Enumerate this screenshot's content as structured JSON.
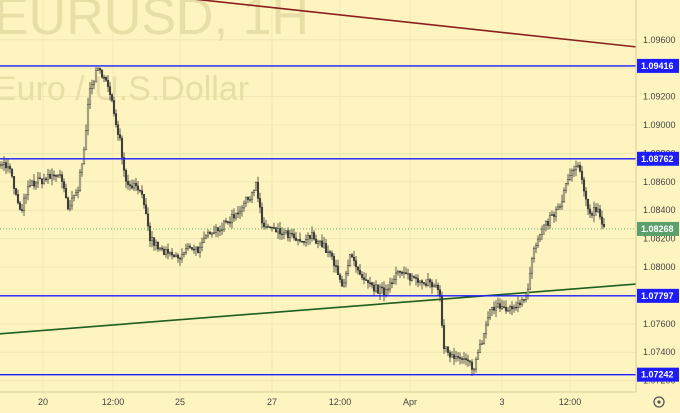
{
  "watermark": {
    "symbol": "EURUSD, 1H",
    "description": "Euro / U.S.Dollar"
  },
  "colors": {
    "background": "#fdf4bf",
    "grid": "#f1e7b3",
    "candle": "#3a3a3a",
    "level": "#1c1cff",
    "support_trendline": "#1e5e1e",
    "resistance_trendline": "#8a1f1f",
    "last_price": "#5aa06b",
    "axis_text": "#444444"
  },
  "settings_icon": "gear-icon",
  "chart_data": {
    "type": "candlestick",
    "title": "",
    "xlabel": "",
    "ylabel": "",
    "ylim": [
      1.0712,
      1.0988
    ],
    "grid": true,
    "y_ticks": [
      "1.07200",
      "1.07400",
      "1.07600",
      "1.07800",
      "1.08000",
      "1.08200",
      "1.08400",
      "1.08600",
      "1.08800",
      "1.09000",
      "1.09200",
      "1.09400",
      "1.09600"
    ],
    "x_ticks": [
      {
        "label": "20",
        "bar": 43
      },
      {
        "label": "12:00",
        "bar": 113
      },
      {
        "label": "25",
        "bar": 180
      },
      {
        "label": "27",
        "bar": 272
      },
      {
        "label": "12:00",
        "bar": 340
      },
      {
        "label": "Apr",
        "bar": 410
      },
      {
        "label": "3",
        "bar": 502
      },
      {
        "label": "12:00",
        "bar": 570
      }
    ],
    "bar_count": 636,
    "waypoints": [
      [
        0,
        1.0875
      ],
      [
        10,
        1.0868
      ],
      [
        20,
        1.0838
      ],
      [
        30,
        1.0858
      ],
      [
        45,
        1.0862
      ],
      [
        60,
        1.0866
      ],
      [
        68,
        1.084
      ],
      [
        78,
        1.0855
      ],
      [
        84,
        1.0885
      ],
      [
        90,
        1.0925
      ],
      [
        97,
        1.0938
      ],
      [
        104,
        1.0936
      ],
      [
        112,
        1.0915
      ],
      [
        120,
        1.089
      ],
      [
        126,
        1.086
      ],
      [
        140,
        1.0856
      ],
      [
        150,
        1.082
      ],
      [
        160,
        1.0812
      ],
      [
        170,
        1.0808
      ],
      [
        180,
        1.0806
      ],
      [
        190,
        1.0815
      ],
      [
        200,
        1.0812
      ],
      [
        210,
        1.0826
      ],
      [
        222,
        1.0828
      ],
      [
        236,
        1.0838
      ],
      [
        248,
        1.0848
      ],
      [
        256,
        1.0858
      ],
      [
        262,
        1.083
      ],
      [
        276,
        1.0825
      ],
      [
        290,
        1.0822
      ],
      [
        300,
        1.0816
      ],
      [
        312,
        1.0822
      ],
      [
        322,
        1.0816
      ],
      [
        332,
        1.0806
      ],
      [
        342,
        1.0786
      ],
      [
        350,
        1.0808
      ],
      [
        362,
        1.079
      ],
      [
        372,
        1.0786
      ],
      [
        384,
        1.0782
      ],
      [
        396,
        1.0796
      ],
      [
        406,
        1.0794
      ],
      [
        416,
        1.0792
      ],
      [
        426,
        1.079
      ],
      [
        440,
        1.0782
      ],
      [
        443,
        1.0745
      ],
      [
        452,
        1.0736
      ],
      [
        462,
        1.0734
      ],
      [
        474,
        1.073
      ],
      [
        482,
        1.0748
      ],
      [
        490,
        1.077
      ],
      [
        500,
        1.0772
      ],
      [
        510,
        1.077
      ],
      [
        520,
        1.0776
      ],
      [
        527,
        1.0782
      ],
      [
        533,
        1.081
      ],
      [
        540,
        1.0822
      ],
      [
        550,
        1.0834
      ],
      [
        560,
        1.0842
      ],
      [
        566,
        1.0858
      ],
      [
        572,
        1.0866
      ],
      [
        578,
        1.0872
      ],
      [
        584,
        1.0852
      ],
      [
        590,
        1.0838
      ],
      [
        597,
        1.0842
      ],
      [
        605,
        1.0827
      ]
    ],
    "horizontal_levels": [
      {
        "value": 1.09416,
        "label": "1.09416"
      },
      {
        "value": 1.08762,
        "label": "1.08762"
      },
      {
        "value": 1.07797,
        "label": "1.07797"
      },
      {
        "value": 1.07242,
        "label": "1.07242"
      }
    ],
    "trendlines": [
      {
        "name": "resistance",
        "from": [
          176,
          1.099
        ],
        "to": [
          636,
          1.0955
        ]
      },
      {
        "name": "support",
        "from": [
          0,
          1.0753
        ],
        "to": [
          636,
          1.0788
        ]
      }
    ],
    "last_price": {
      "value": 1.08268,
      "label": "1.08268"
    }
  }
}
